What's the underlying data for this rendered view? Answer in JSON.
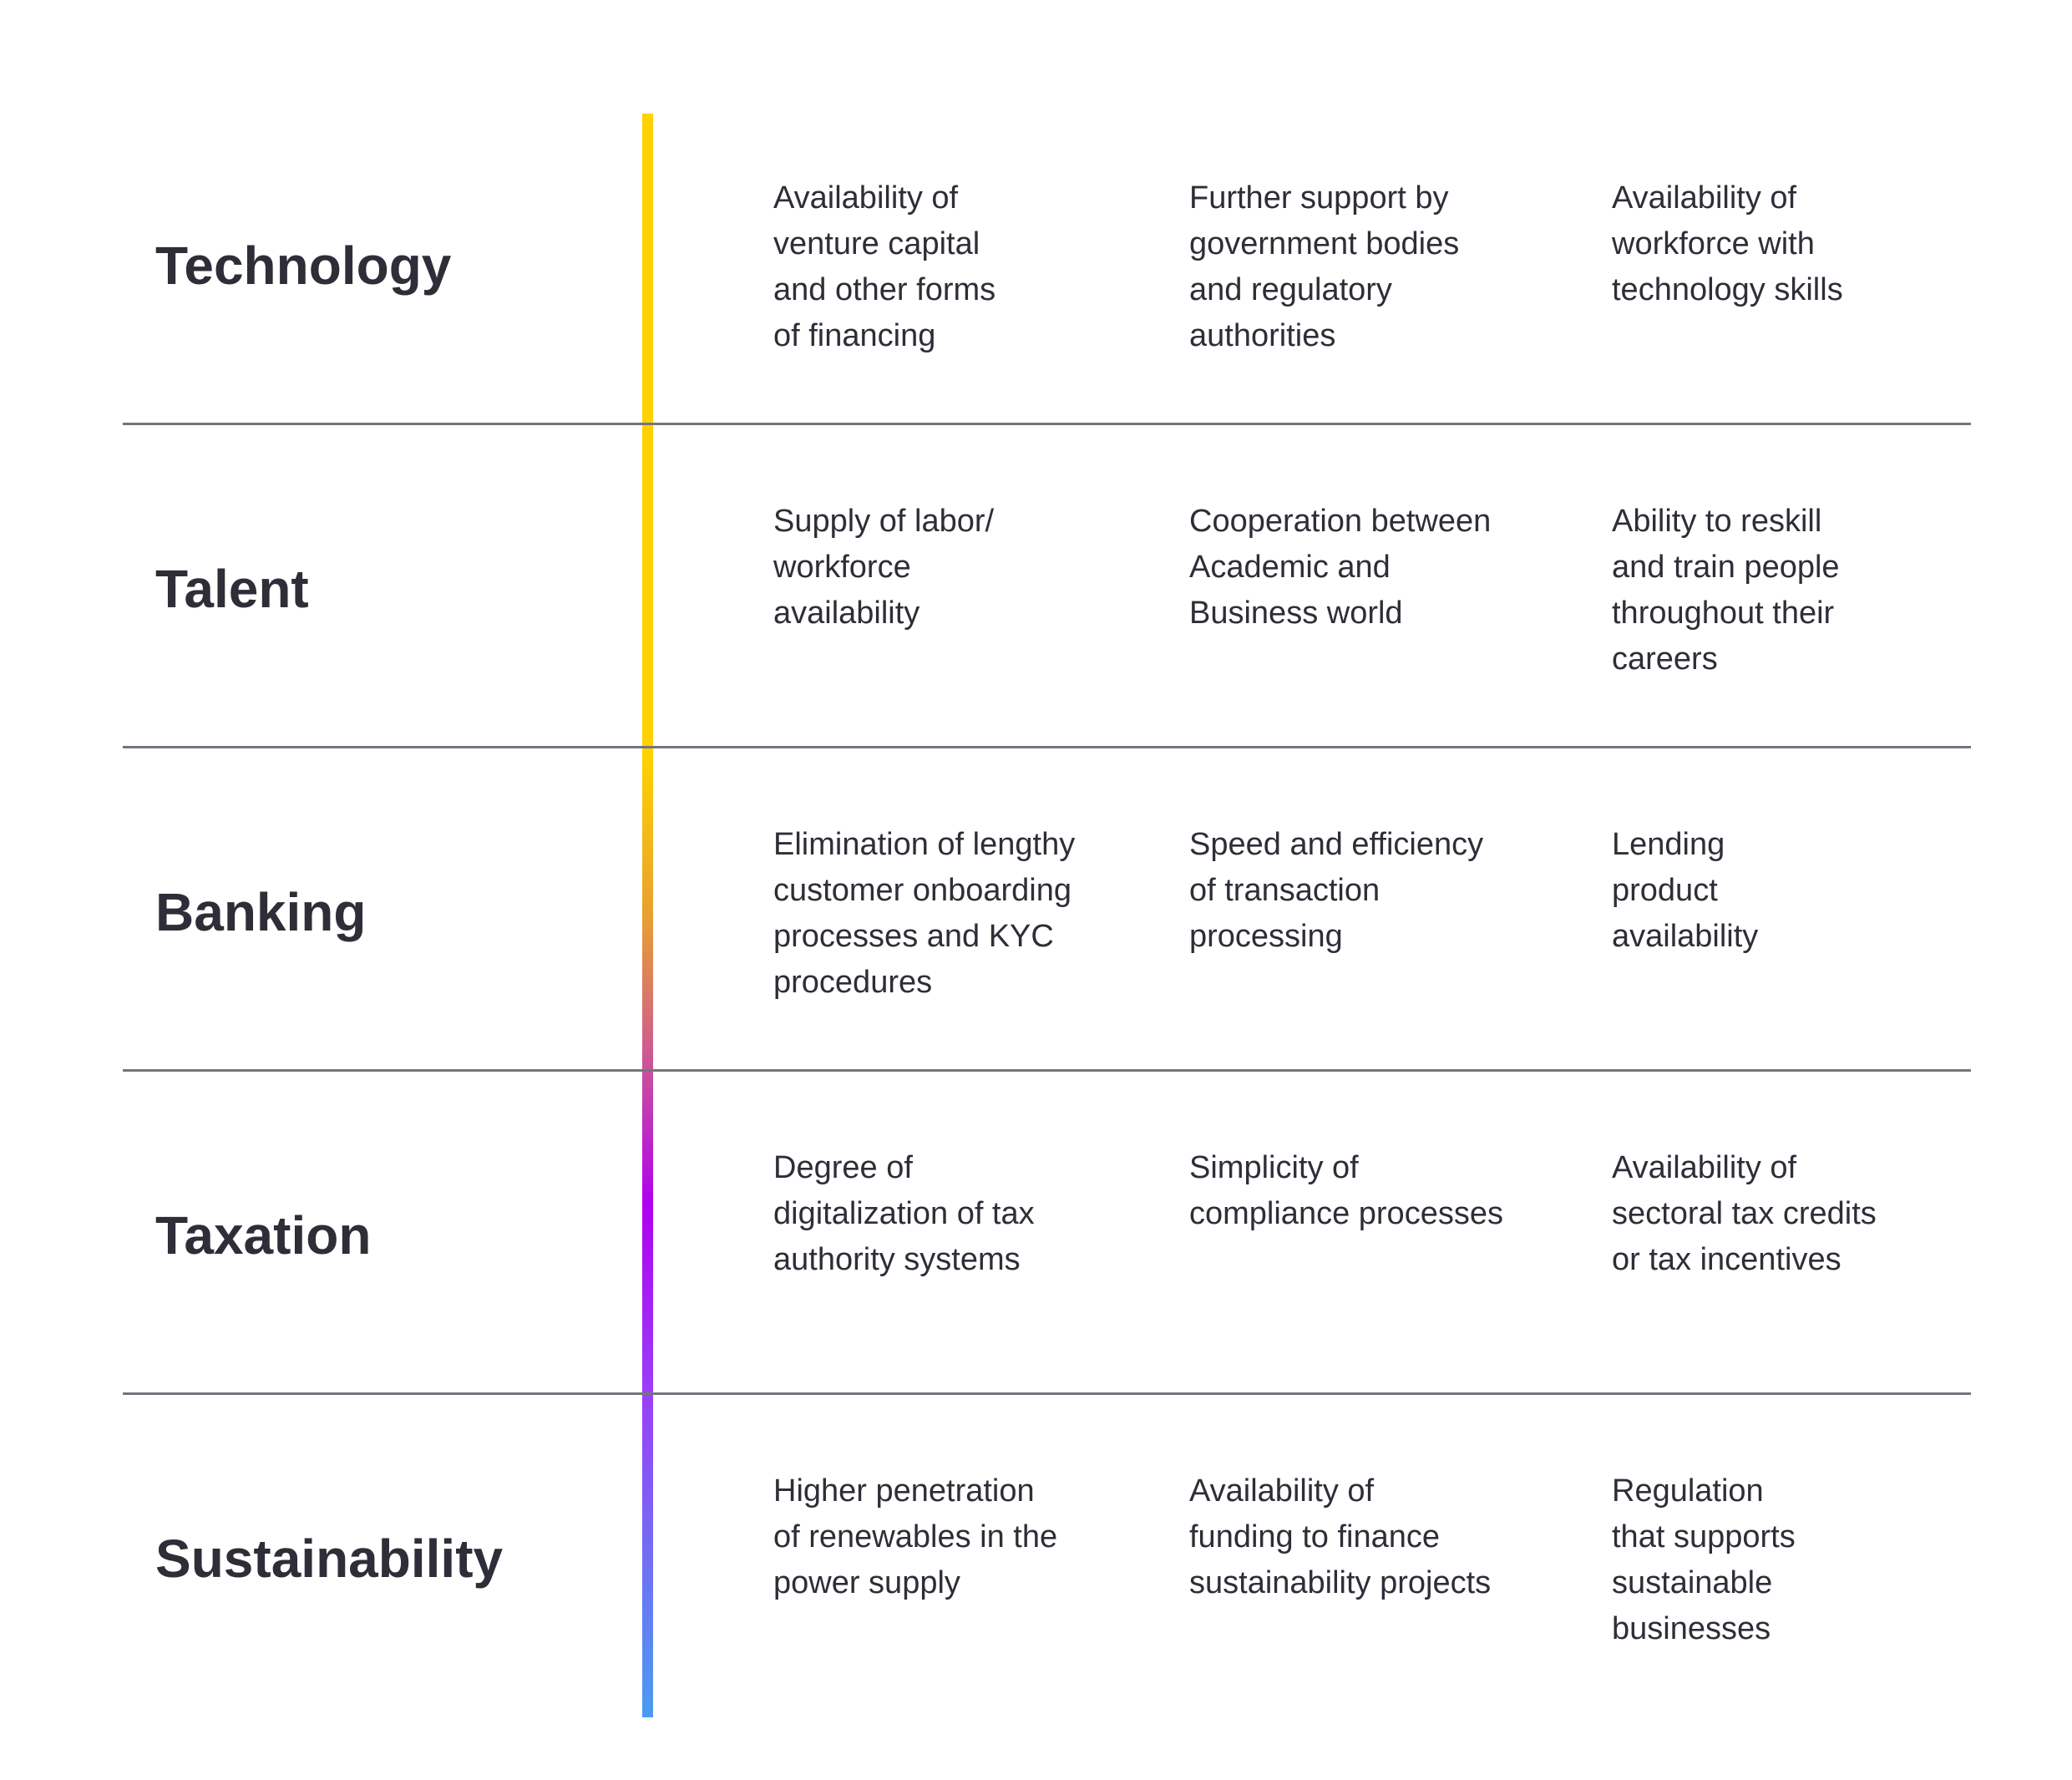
{
  "rows": [
    {
      "label": "Technology",
      "cells": [
        [
          "Availability of",
          "venture capital",
          "and other forms",
          "of financing"
        ],
        [
          "Further support by",
          "government bodies",
          "and regulatory",
          "authorities"
        ],
        [
          "Availability of",
          "workforce with",
          "technology skills"
        ]
      ]
    },
    {
      "label": "Talent",
      "cells": [
        [
          "Supply of labor/",
          "workforce",
          "availability"
        ],
        [
          "Cooperation between",
          "Academic and",
          "Business world"
        ],
        [
          "Ability to reskill",
          "and train people",
          "throughout their",
          "careers"
        ]
      ]
    },
    {
      "label": "Banking",
      "cells": [
        [
          "Elimination of lengthy",
          "customer onboarding",
          "processes and KYC",
          "procedures"
        ],
        [
          "Speed and efficiency",
          "of transaction",
          "processing"
        ],
        [
          "Lending",
          "product",
          "availability"
        ]
      ]
    },
    {
      "label": "Taxation",
      "cells": [
        [
          "Degree of",
          "digitalization of tax",
          "authority systems"
        ],
        [
          "Simplicity of",
          "compliance processes"
        ],
        [
          "Availability of",
          "sectoral tax credits",
          "or tax incentives"
        ]
      ]
    },
    {
      "label": "Sustainability",
      "cells": [
        [
          "Higher penetration",
          "of renewables in the",
          "power supply"
        ],
        [
          "Availability of",
          "funding to finance",
          "sustainability projects"
        ],
        [
          "Regulation",
          "that supports",
          "sustainable",
          "businesses"
        ]
      ]
    }
  ]
}
